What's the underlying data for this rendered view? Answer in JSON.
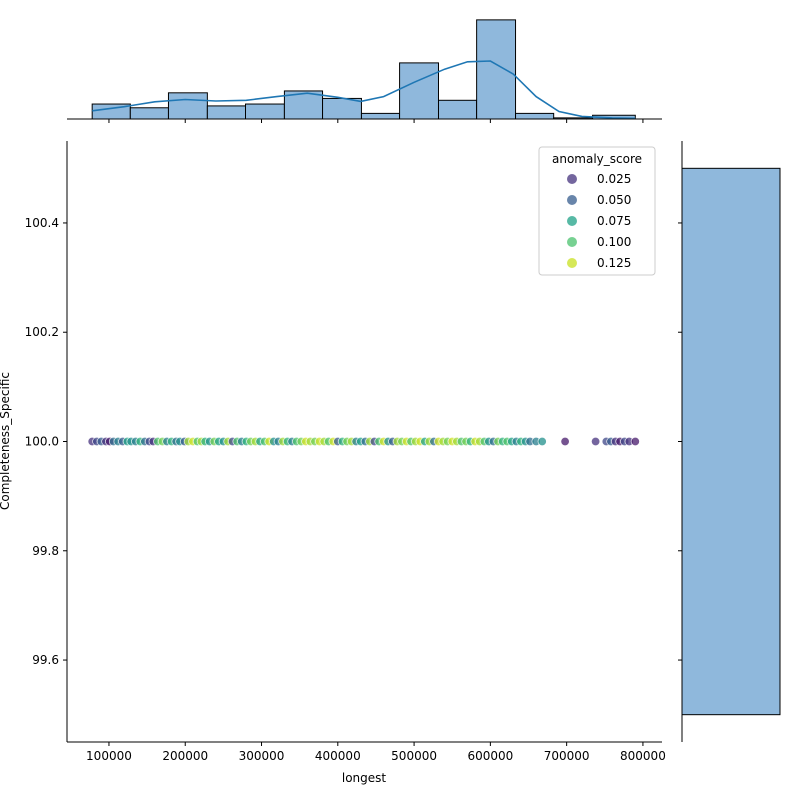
{
  "chart_data": {
    "type": "scatter",
    "title": "",
    "xlabel": "longest",
    "ylabel": "Completeness_Specific",
    "xlim": [
      45000,
      825000
    ],
    "ylim": [
      99.45,
      100.55
    ],
    "x_ticks": [
      100000,
      200000,
      300000,
      400000,
      500000,
      600000,
      700000,
      800000
    ],
    "x_tick_labels": [
      "100000",
      "200000",
      "300000",
      "400000",
      "500000",
      "600000",
      "700000",
      "800000"
    ],
    "y_ticks": [
      99.6,
      99.8,
      100.0,
      100.2,
      100.4
    ],
    "y_tick_labels": [
      "99.6",
      "99.8",
      "100.0",
      "100.2",
      "100.4"
    ],
    "grid": false,
    "legend": {
      "title": "anomaly_score",
      "placement": "top-right",
      "entries": [
        {
          "label": "0.025",
          "color": "#46337e"
        },
        {
          "label": "0.050",
          "color": "#365c8d"
        },
        {
          "label": "0.075",
          "color": "#1fa187"
        },
        {
          "label": "0.100",
          "color": "#4ac16d"
        },
        {
          "label": "0.125",
          "color": "#c8e020"
        }
      ]
    },
    "colormap": "viridis",
    "hue_range": [
      0.0,
      0.14
    ],
    "points": [
      [
        78000,
        100.0,
        0.02
      ],
      [
        84000,
        100.0,
        0.03
      ],
      [
        90000,
        100.0,
        0.04
      ],
      [
        96000,
        100.0,
        0.02
      ],
      [
        101000,
        100.0,
        0.01
      ],
      [
        106000,
        100.0,
        0.05
      ],
      [
        112000,
        100.0,
        0.06
      ],
      [
        118000,
        100.0,
        0.04
      ],
      [
        124000,
        100.0,
        0.08
      ],
      [
        129000,
        100.0,
        0.07
      ],
      [
        135000,
        100.0,
        0.06
      ],
      [
        141000,
        100.0,
        0.09
      ],
      [
        147000,
        100.0,
        0.05
      ],
      [
        153000,
        100.0,
        0.03
      ],
      [
        158000,
        100.0,
        0.02
      ],
      [
        164000,
        100.0,
        0.1
      ],
      [
        170000,
        100.0,
        0.11
      ],
      [
        176000,
        100.0,
        0.06
      ],
      [
        182000,
        100.0,
        0.09
      ],
      [
        188000,
        100.0,
        0.05
      ],
      [
        193000,
        100.0,
        0.07
      ],
      [
        199000,
        100.0,
        0.04
      ],
      [
        204000,
        100.0,
        0.12
      ],
      [
        210000,
        100.0,
        0.13
      ],
      [
        216000,
        100.0,
        0.1
      ],
      [
        221000,
        100.0,
        0.12
      ],
      [
        226000,
        100.0,
        0.09
      ],
      [
        232000,
        100.0,
        0.07
      ],
      [
        238000,
        100.0,
        0.11
      ],
      [
        244000,
        100.0,
        0.08
      ],
      [
        250000,
        100.0,
        0.07
      ],
      [
        256000,
        100.0,
        0.12
      ],
      [
        262000,
        100.0,
        0.03
      ],
      [
        268000,
        100.0,
        0.1
      ],
      [
        274000,
        100.0,
        0.06
      ],
      [
        280000,
        100.0,
        0.09
      ],
      [
        286000,
        100.0,
        0.11
      ],
      [
        292000,
        100.0,
        0.12
      ],
      [
        298000,
        100.0,
        0.08
      ],
      [
        304000,
        100.0,
        0.1
      ],
      [
        310000,
        100.0,
        0.13
      ],
      [
        316000,
        100.0,
        0.07
      ],
      [
        322000,
        100.0,
        0.06
      ],
      [
        328000,
        100.0,
        0.12
      ],
      [
        334000,
        100.0,
        0.09
      ],
      [
        340000,
        100.0,
        0.06
      ],
      [
        346000,
        100.0,
        0.1
      ],
      [
        352000,
        100.0,
        0.11
      ],
      [
        358000,
        100.0,
        0.13
      ],
      [
        364000,
        100.0,
        0.12
      ],
      [
        370000,
        100.0,
        0.11
      ],
      [
        376000,
        100.0,
        0.13
      ],
      [
        382000,
        100.0,
        0.12
      ],
      [
        388000,
        100.0,
        0.1
      ],
      [
        394000,
        100.0,
        0.13
      ],
      [
        400000,
        100.0,
        0.04
      ],
      [
        406000,
        100.0,
        0.09
      ],
      [
        412000,
        100.0,
        0.11
      ],
      [
        418000,
        100.0,
        0.12
      ],
      [
        424000,
        100.0,
        0.06
      ],
      [
        430000,
        100.0,
        0.08
      ],
      [
        436000,
        100.0,
        0.05
      ],
      [
        442000,
        100.0,
        0.12
      ],
      [
        448000,
        100.0,
        0.03
      ],
      [
        454000,
        100.0,
        0.1
      ],
      [
        460000,
        100.0,
        0.13
      ],
      [
        466000,
        100.0,
        0.07
      ],
      [
        472000,
        100.0,
        0.04
      ],
      [
        478000,
        100.0,
        0.12
      ],
      [
        484000,
        100.0,
        0.11
      ],
      [
        490000,
        100.0,
        0.13
      ],
      [
        496000,
        100.0,
        0.1
      ],
      [
        502000,
        100.0,
        0.12
      ],
      [
        508000,
        100.0,
        0.13
      ],
      [
        514000,
        100.0,
        0.08
      ],
      [
        520000,
        100.0,
        0.12
      ],
      [
        526000,
        100.0,
        0.05
      ],
      [
        532000,
        100.0,
        0.13
      ],
      [
        538000,
        100.0,
        0.12
      ],
      [
        544000,
        100.0,
        0.11
      ],
      [
        550000,
        100.0,
        0.13
      ],
      [
        556000,
        100.0,
        0.12
      ],
      [
        562000,
        100.0,
        0.1
      ],
      [
        568000,
        100.0,
        0.11
      ],
      [
        574000,
        100.0,
        0.09
      ],
      [
        580000,
        100.0,
        0.13
      ],
      [
        586000,
        100.0,
        0.12
      ],
      [
        592000,
        100.0,
        0.1
      ],
      [
        598000,
        100.0,
        0.07
      ],
      [
        604000,
        100.0,
        0.05
      ],
      [
        610000,
        100.0,
        0.11
      ],
      [
        616000,
        100.0,
        0.09
      ],
      [
        622000,
        100.0,
        0.1
      ],
      [
        628000,
        100.0,
        0.08
      ],
      [
        634000,
        100.0,
        0.06
      ],
      [
        640000,
        100.0,
        0.09
      ],
      [
        646000,
        100.0,
        0.07
      ],
      [
        652000,
        100.0,
        0.05
      ],
      [
        660000,
        100.0,
        0.06
      ],
      [
        668000,
        100.0,
        0.07
      ],
      [
        698000,
        100.0,
        0.01
      ],
      [
        738000,
        100.0,
        0.02
      ],
      [
        752000,
        100.0,
        0.03
      ],
      [
        758000,
        100.0,
        0.04
      ],
      [
        764000,
        100.0,
        0.02
      ],
      [
        770000,
        100.0,
        0.01
      ],
      [
        776000,
        100.0,
        0.03
      ],
      [
        782000,
        100.0,
        0.02
      ],
      [
        790000,
        100.0,
        0.01
      ]
    ],
    "marginal_x": {
      "type": "histogram_kde",
      "bins": [
        {
          "start": 78000,
          "end": 128000,
          "count": 4
        },
        {
          "start": 128000,
          "end": 178000,
          "count": 3
        },
        {
          "start": 178000,
          "end": 229000,
          "count": 7
        },
        {
          "start": 229000,
          "end": 279000,
          "count": 3.5
        },
        {
          "start": 279000,
          "end": 330000,
          "count": 4
        },
        {
          "start": 330000,
          "end": 380000,
          "count": 7.5
        },
        {
          "start": 380000,
          "end": 431000,
          "count": 5.5
        },
        {
          "start": 431000,
          "end": 481000,
          "count": 1.5
        },
        {
          "start": 481000,
          "end": 532000,
          "count": 15
        },
        {
          "start": 532000,
          "end": 582000,
          "count": 5
        },
        {
          "start": 582000,
          "end": 633000,
          "count": 26.5
        },
        {
          "start": 633000,
          "end": 683000,
          "count": 1.5
        },
        {
          "start": 683000,
          "end": 734000,
          "count": 0.3
        },
        {
          "start": 734000,
          "end": 790000,
          "count": 1
        }
      ],
      "kde": [
        [
          78000,
          2.2
        ],
        [
          120000,
          3.3
        ],
        [
          160000,
          4.6
        ],
        [
          200000,
          5.2
        ],
        [
          240000,
          4.8
        ],
        [
          280000,
          5.0
        ],
        [
          320000,
          6.0
        ],
        [
          360000,
          6.9
        ],
        [
          400000,
          5.8
        ],
        [
          430000,
          4.7
        ],
        [
          460000,
          6.0
        ],
        [
          500000,
          9.8
        ],
        [
          540000,
          13.3
        ],
        [
          570000,
          15.3
        ],
        [
          600000,
          15.5
        ],
        [
          630000,
          12.0
        ],
        [
          660000,
          6.0
        ],
        [
          690000,
          2.0
        ],
        [
          720000,
          0.7
        ],
        [
          760000,
          0.3
        ],
        [
          790000,
          0.2
        ]
      ],
      "ymax": 27
    },
    "marginal_y": {
      "type": "histogram",
      "bins": [
        {
          "start": 99.5,
          "end": 100.5,
          "count": 1
        }
      ]
    }
  }
}
